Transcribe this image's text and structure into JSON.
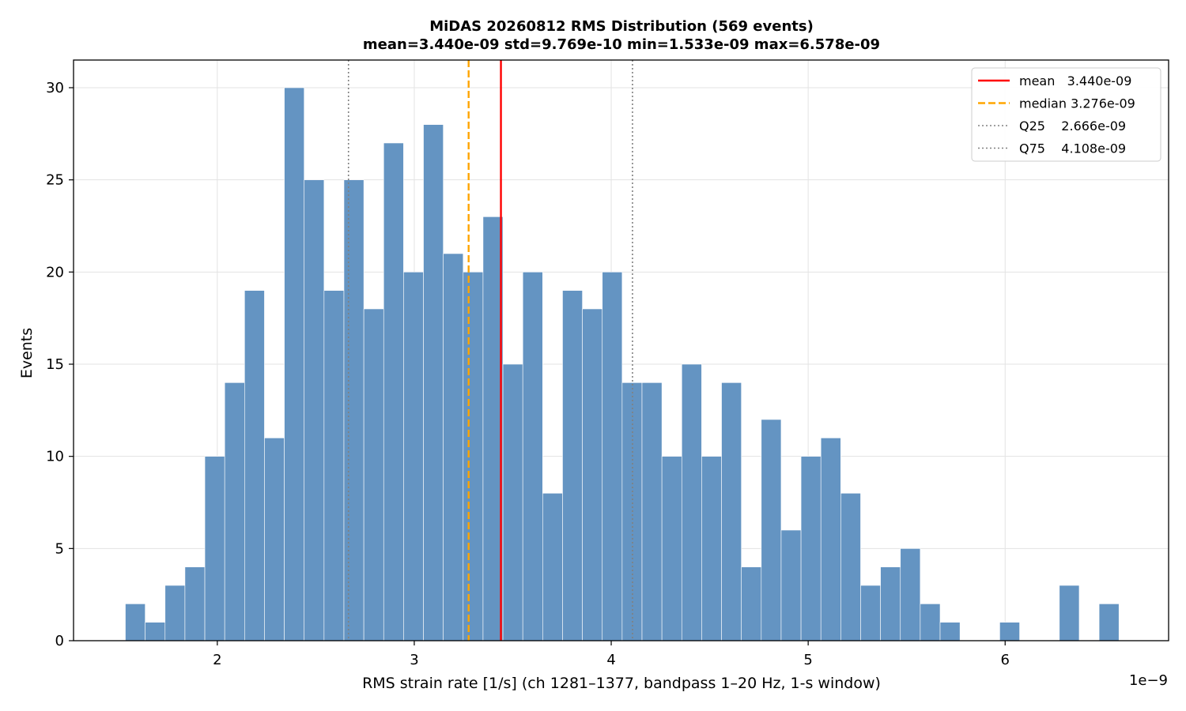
{
  "chart_data": {
    "type": "bar",
    "title": "MiDAS 20260812  RMS Distribution  (569 events)",
    "subtitle": "mean=3.440e-09  std=9.769e-10  min=1.533e-09  max=6.578e-09",
    "xlabel": "RMS strain rate [1/s]  (ch 1281–1377, bandpass 1–20 Hz, 1-s window)",
    "ylabel": "Events",
    "x_offset_label": "1e−9",
    "xlim": [
      1.27,
      6.83
    ],
    "ylim": [
      0,
      31.5
    ],
    "grid": true,
    "legend_position": "top-right",
    "x_ticks": [
      2,
      3,
      4,
      5,
      6
    ],
    "y_ticks": [
      0,
      5,
      10,
      15,
      20,
      25,
      30
    ],
    "bin_start": 1.533,
    "bin_width": 0.1009,
    "counts": [
      2,
      1,
      3,
      4,
      10,
      14,
      19,
      11,
      30,
      25,
      19,
      25,
      18,
      27,
      20,
      28,
      21,
      20,
      23,
      15,
      20,
      8,
      19,
      18,
      20,
      14,
      14,
      10,
      15,
      10,
      14,
      4,
      12,
      6,
      10,
      11,
      8,
      3,
      4,
      5,
      2,
      1,
      0,
      0,
      1,
      0,
      0,
      3,
      0,
      2
    ],
    "bar_color": "#6494c2",
    "reference_lines": [
      {
        "name": "mean",
        "value": 3.44,
        "color": "#ff0000",
        "style": "solid",
        "legend": "mean   3.440e-09"
      },
      {
        "name": "median",
        "value": 3.276,
        "color": "#ffa500",
        "style": "dashed",
        "legend": "median 3.276e-09"
      },
      {
        "name": "Q25",
        "value": 2.666,
        "color": "#808080",
        "style": "dotted",
        "legend": "Q25    2.666e-09"
      },
      {
        "name": "Q75",
        "value": 4.108,
        "color": "#808080",
        "style": "dotted",
        "legend": "Q75    4.108e-09"
      }
    ]
  }
}
